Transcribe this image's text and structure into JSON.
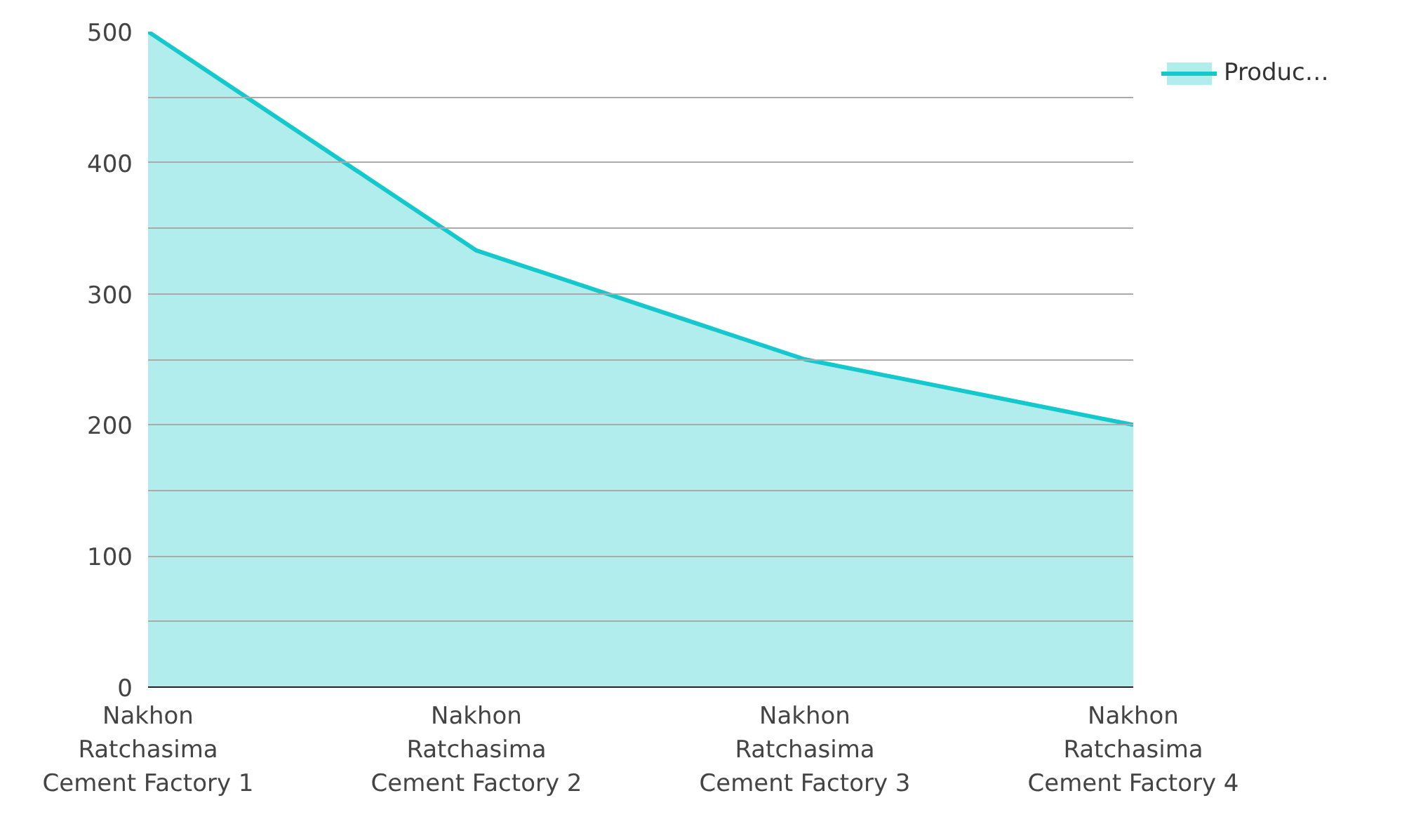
{
  "chart_data": {
    "type": "area",
    "categories": [
      "Nakhon\nRatchasima\nCement Factory 1",
      "Nakhon\nRatchasima\nCement Factory 2",
      "Nakhon\nRatchasima\nCement Factory 3",
      "Nakhon\nRatchasima\nCement Factory 4"
    ],
    "series": [
      {
        "name": "Produc…",
        "color": "#14c8cc",
        "values": [
          500,
          333,
          250,
          200
        ]
      }
    ],
    "ylim": [
      0,
      500
    ],
    "yticks": [
      0,
      {
        "value": 50,
        "label": null
      },
      100,
      {
        "value": 150,
        "label": null
      },
      200,
      {
        "value": 250,
        "label": null
      },
      300,
      {
        "value": 350,
        "label": null
      },
      400,
      {
        "value": 450,
        "label": null
      },
      500
    ],
    "grid": "y",
    "legend": "top right"
  }
}
